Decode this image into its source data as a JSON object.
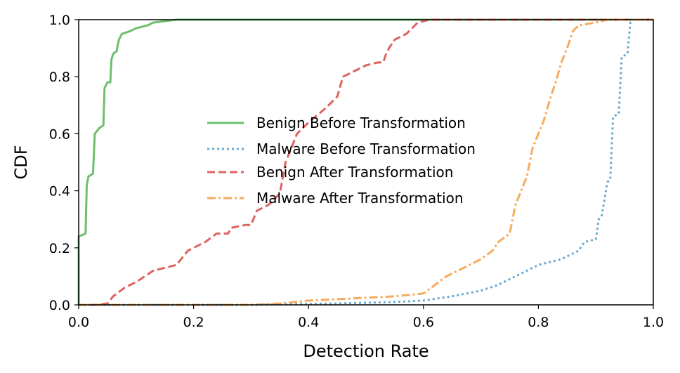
{
  "chart_data": {
    "type": "line",
    "title": "",
    "xlabel": "Detection Rate",
    "ylabel": "CDF",
    "xlim": [
      0.0,
      1.0
    ],
    "ylim": [
      0.0,
      1.0
    ],
    "xticks": [
      "0.0",
      "0.2",
      "0.4",
      "0.6",
      "0.8",
      "1.0"
    ],
    "yticks": [
      "0.0",
      "0.2",
      "0.4",
      "0.6",
      "0.8",
      "1.0"
    ],
    "grid": false,
    "legend_position": "center",
    "series": [
      {
        "name": "Benign Before Transformation",
        "color": "#5db85d",
        "style": "solid",
        "points": [
          [
            0.0,
            0.0
          ],
          [
            0.0,
            0.24
          ],
          [
            0.012,
            0.25
          ],
          [
            0.014,
            0.42
          ],
          [
            0.017,
            0.45
          ],
          [
            0.025,
            0.46
          ],
          [
            0.028,
            0.6
          ],
          [
            0.036,
            0.62
          ],
          [
            0.043,
            0.63
          ],
          [
            0.045,
            0.76
          ],
          [
            0.05,
            0.78
          ],
          [
            0.055,
            0.78
          ],
          [
            0.057,
            0.86
          ],
          [
            0.06,
            0.88
          ],
          [
            0.066,
            0.89
          ],
          [
            0.07,
            0.93
          ],
          [
            0.075,
            0.95
          ],
          [
            0.09,
            0.96
          ],
          [
            0.1,
            0.97
          ],
          [
            0.12,
            0.98
          ],
          [
            0.13,
            0.99
          ],
          [
            0.17,
            1.0
          ],
          [
            1.0,
            1.0
          ]
        ]
      },
      {
        "name": "Malware Before Transformation",
        "color": "#5b9ec9",
        "style": "dotted",
        "points": [
          [
            0.0,
            0.0
          ],
          [
            0.3,
            0.0
          ],
          [
            0.45,
            0.005
          ],
          [
            0.55,
            0.01
          ],
          [
            0.6,
            0.015
          ],
          [
            0.65,
            0.03
          ],
          [
            0.7,
            0.05
          ],
          [
            0.73,
            0.07
          ],
          [
            0.76,
            0.1
          ],
          [
            0.8,
            0.14
          ],
          [
            0.84,
            0.16
          ],
          [
            0.87,
            0.19
          ],
          [
            0.88,
            0.22
          ],
          [
            0.9,
            0.23
          ],
          [
            0.905,
            0.3
          ],
          [
            0.91,
            0.31
          ],
          [
            0.92,
            0.43
          ],
          [
            0.925,
            0.44
          ],
          [
            0.93,
            0.66
          ],
          [
            0.94,
            0.67
          ],
          [
            0.945,
            0.87
          ],
          [
            0.955,
            0.88
          ],
          [
            0.96,
            0.99
          ],
          [
            0.965,
            1.0
          ],
          [
            1.0,
            1.0
          ]
        ]
      },
      {
        "name": "Benign After Transformation",
        "color": "#d9534f",
        "style": "dashed",
        "points": [
          [
            0.0,
            0.0
          ],
          [
            0.03,
            0.0
          ],
          [
            0.05,
            0.005
          ],
          [
            0.06,
            0.03
          ],
          [
            0.08,
            0.06
          ],
          [
            0.1,
            0.08
          ],
          [
            0.13,
            0.12
          ],
          [
            0.17,
            0.14
          ],
          [
            0.19,
            0.19
          ],
          [
            0.21,
            0.21
          ],
          [
            0.22,
            0.22
          ],
          [
            0.24,
            0.25
          ],
          [
            0.26,
            0.25
          ],
          [
            0.265,
            0.27
          ],
          [
            0.29,
            0.28
          ],
          [
            0.3,
            0.28
          ],
          [
            0.31,
            0.33
          ],
          [
            0.33,
            0.35
          ],
          [
            0.35,
            0.39
          ],
          [
            0.36,
            0.5
          ],
          [
            0.38,
            0.6
          ],
          [
            0.4,
            0.64
          ],
          [
            0.43,
            0.69
          ],
          [
            0.44,
            0.71
          ],
          [
            0.45,
            0.73
          ],
          [
            0.46,
            0.8
          ],
          [
            0.48,
            0.82
          ],
          [
            0.5,
            0.84
          ],
          [
            0.52,
            0.85
          ],
          [
            0.53,
            0.85
          ],
          [
            0.535,
            0.88
          ],
          [
            0.54,
            0.9
          ],
          [
            0.55,
            0.93
          ],
          [
            0.57,
            0.95
          ],
          [
            0.59,
            0.99
          ],
          [
            0.61,
            1.0
          ],
          [
            1.0,
            1.0
          ]
        ]
      },
      {
        "name": "Malware After Transformation",
        "color": "#f5a24b",
        "style": "dashdot",
        "points": [
          [
            0.0,
            0.0
          ],
          [
            0.3,
            0.0
          ],
          [
            0.35,
            0.005
          ],
          [
            0.4,
            0.015
          ],
          [
            0.45,
            0.02
          ],
          [
            0.5,
            0.025
          ],
          [
            0.55,
            0.03
          ],
          [
            0.6,
            0.04
          ],
          [
            0.62,
            0.07
          ],
          [
            0.64,
            0.1
          ],
          [
            0.66,
            0.12
          ],
          [
            0.68,
            0.14
          ],
          [
            0.7,
            0.16
          ],
          [
            0.72,
            0.19
          ],
          [
            0.73,
            0.22
          ],
          [
            0.75,
            0.25
          ],
          [
            0.76,
            0.35
          ],
          [
            0.77,
            0.4
          ],
          [
            0.78,
            0.45
          ],
          [
            0.79,
            0.55
          ],
          [
            0.8,
            0.6
          ],
          [
            0.81,
            0.65
          ],
          [
            0.82,
            0.72
          ],
          [
            0.83,
            0.78
          ],
          [
            0.84,
            0.85
          ],
          [
            0.85,
            0.9
          ],
          [
            0.86,
            0.96
          ],
          [
            0.87,
            0.98
          ],
          [
            0.9,
            0.99
          ],
          [
            0.92,
            1.0
          ],
          [
            1.0,
            1.0
          ]
        ]
      }
    ]
  }
}
